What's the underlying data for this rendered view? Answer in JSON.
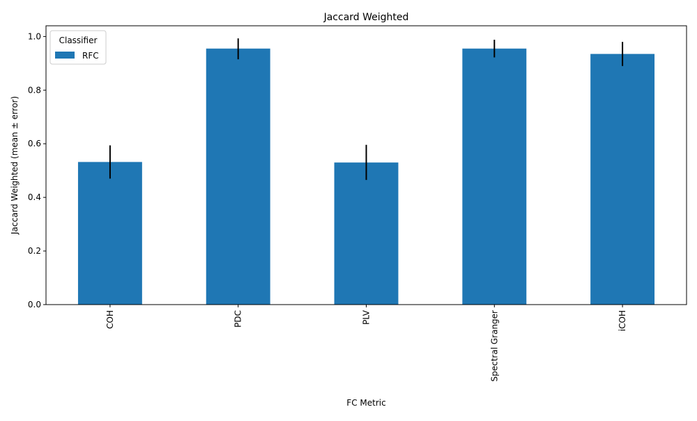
{
  "chart_data": {
    "type": "bar",
    "title": "Jaccard Weighted",
    "xlabel": "FC Metric",
    "ylabel": "Jaccard Weighted (mean ± error)",
    "categories": [
      "COH",
      "PDC",
      "PLV",
      "Spectral Granger",
      "iCOH"
    ],
    "series": [
      {
        "name": "RFC",
        "values": [
          0.532,
          0.955,
          0.53,
          0.955,
          0.935
        ],
        "error_low": [
          0.47,
          0.915,
          0.465,
          0.922,
          0.89
        ],
        "error_high": [
          0.594,
          0.993,
          0.596,
          0.988,
          0.98
        ],
        "color": "#1f77b4"
      }
    ],
    "ylim": [
      0,
      1.04
    ],
    "yticks": [
      "0.0",
      "0.2",
      "0.4",
      "0.6",
      "0.8",
      "1.0"
    ],
    "ytick_values": [
      0,
      0.2,
      0.4,
      0.6,
      0.8,
      1.0
    ],
    "grid": false,
    "legend": {
      "title": "Classifier",
      "placement": "top-left"
    },
    "error_bar_color": "#000000"
  }
}
